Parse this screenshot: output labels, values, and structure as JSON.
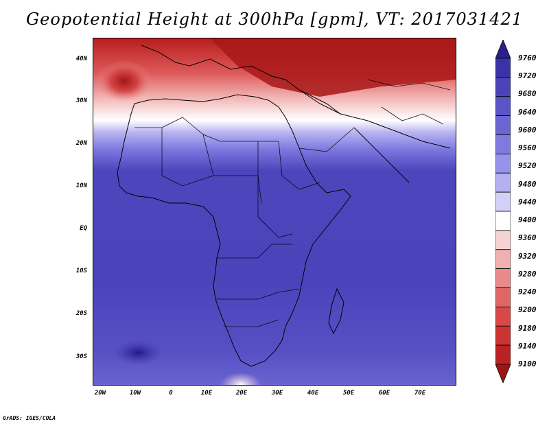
{
  "title": "Geopotential Height at 300hPa [gpm], VT: 2017031421",
  "credit": "GrADS: IGES/COLA",
  "map": {
    "lat_labels": [
      "40N",
      "30N",
      "20N",
      "10N",
      "EQ",
      "10S",
      "20S",
      "30S"
    ],
    "lon_labels": [
      "20W",
      "10W",
      "0",
      "10E",
      "20E",
      "30E",
      "40E",
      "50E",
      "60E",
      "70E"
    ]
  },
  "colorbar": {
    "labels": [
      "9760",
      "9720",
      "9680",
      "9640",
      "9600",
      "9560",
      "9520",
      "9480",
      "9440",
      "9400",
      "9360",
      "9320",
      "9280",
      "9240",
      "9200",
      "9180",
      "9140",
      "9100"
    ],
    "colors": [
      "#2a1f8f",
      "#3a33a8",
      "#4a44b8",
      "#5a55c6",
      "#6b66d3",
      "#7f7ae0",
      "#9893ea",
      "#b4b0f2",
      "#d2d0f8",
      "#ffffff",
      "#f6d2d2",
      "#f0b0b0",
      "#e98a8a",
      "#e06666",
      "#d84848",
      "#cc3333",
      "#b82222",
      "#9e1414"
    ]
  }
}
